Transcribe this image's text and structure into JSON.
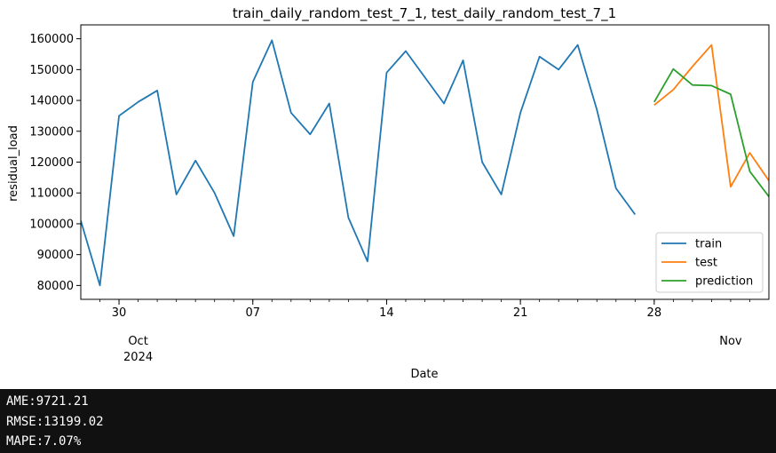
{
  "chart_data": {
    "type": "line",
    "title": "train_daily_random_test_7_1, test_daily_random_test_7_1",
    "xlabel": "Date",
    "ylabel": "residual_load",
    "xlim": [
      "2024-09-28",
      "2024-11-03"
    ],
    "ylim": [
      75500,
      164500
    ],
    "grid": false,
    "legend": "lower-right",
    "x_ticks": [
      {
        "date": "2024-09-30",
        "label": "30"
      },
      {
        "date": "2024-10-07",
        "label": "07"
      },
      {
        "date": "2024-10-14",
        "label": "14"
      },
      {
        "date": "2024-10-21",
        "label": "21"
      },
      {
        "date": "2024-10-28",
        "label": "28"
      }
    ],
    "x_month_labels": [
      {
        "date": "2024-10-01",
        "month": "Oct",
        "year": "2024"
      },
      {
        "date": "2024-11-01",
        "month": "Nov",
        "year": ""
      }
    ],
    "y_ticks": [
      80000,
      90000,
      100000,
      110000,
      120000,
      130000,
      140000,
      150000,
      160000
    ],
    "series": [
      {
        "name": "train",
        "color": "#1f77b4",
        "x": [
          "2024-09-28",
          "2024-09-29",
          "2024-09-30",
          "2024-10-01",
          "2024-10-02",
          "2024-10-03",
          "2024-10-04",
          "2024-10-05",
          "2024-10-06",
          "2024-10-07",
          "2024-10-08",
          "2024-10-09",
          "2024-10-10",
          "2024-10-11",
          "2024-10-12",
          "2024-10-13",
          "2024-10-14",
          "2024-10-15",
          "2024-10-16",
          "2024-10-17",
          "2024-10-18",
          "2024-10-19",
          "2024-10-20",
          "2024-10-21",
          "2024-10-22",
          "2024-10-23",
          "2024-10-24",
          "2024-10-25",
          "2024-10-26",
          "2024-10-27"
        ],
        "values": [
          101000,
          80000,
          135000,
          139500,
          143200,
          109500,
          120500,
          110000,
          96000,
          146000,
          159500,
          136000,
          129000,
          139000,
          102000,
          87800,
          149000,
          156000,
          147500,
          139000,
          153000,
          120000,
          109500,
          136000,
          154200,
          150000,
          158000,
          137000,
          111500,
          103000
        ]
      },
      {
        "name": "test",
        "color": "#ff7f0e",
        "x": [
          "2024-10-28",
          "2024-10-29",
          "2024-10-30",
          "2024-10-31",
          "2024-11-01",
          "2024-11-02",
          "2024-11-03"
        ],
        "values": [
          138500,
          143500,
          151000,
          158000,
          112000,
          123000,
          114000
        ]
      },
      {
        "name": "prediction",
        "color": "#2ca02c",
        "x": [
          "2024-10-28",
          "2024-10-29",
          "2024-10-30",
          "2024-10-31",
          "2024-11-01",
          "2024-11-02",
          "2024-11-03"
        ],
        "values": [
          139500,
          150200,
          145000,
          144800,
          142000,
          117000,
          108800
        ]
      }
    ]
  },
  "metrics": {
    "ame": "AME:9721.21",
    "rmse": "RMSE:13199.02",
    "mape": "MAPE:7.07%"
  }
}
